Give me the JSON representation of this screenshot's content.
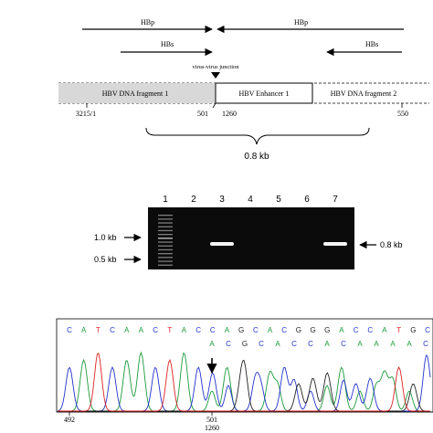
{
  "map": {
    "primer_hbp_left": "HBp",
    "primer_hbp_right": "HBp",
    "primer_hbs_left": "HBs",
    "primer_hbs_right": "HBs",
    "junction_label": "virus-virus junction",
    "fragment1_label": "HBV DNA fragment 1",
    "enhancer_label": "HBV Enhancer 1",
    "fragment2_label": "HBV DNA fragment 2",
    "pos_start": "3215/1",
    "pos_501": "501",
    "pos_1260": "1260",
    "pos_550": "550",
    "size_label": "0.8 kb"
  },
  "gel": {
    "lanes": [
      "1",
      "2",
      "3",
      "4",
      "5",
      "6",
      "7"
    ],
    "marker_high": "1.0 kb",
    "marker_low": "0.5 kb",
    "band_label": "0.8 kb",
    "band_lanes": [
      "3",
      "7"
    ]
  },
  "seq": {
    "row1": [
      "C",
      "A",
      "T",
      "C",
      "A",
      "A",
      "C",
      "T",
      "A",
      "C",
      "C",
      "A",
      "G",
      "C",
      "A",
      "C",
      "G",
      "G",
      "G",
      "A",
      "C",
      "C",
      "A",
      "T",
      "G",
      "C"
    ],
    "row2": [
      "A",
      "C",
      "G",
      "C",
      "A",
      "C",
      "C",
      "A",
      "C",
      "A",
      "A",
      "A",
      "A",
      "C"
    ],
    "pos_492": "492",
    "pos_501": "501",
    "pos_1260": "1260"
  },
  "colors": {
    "A": "#1a9a3a",
    "C": "#2233cc",
    "G": "#222222",
    "T": "#dd2222",
    "fragment_fill": "#d8d8d8",
    "gel_bg": "#0b0b0b",
    "band": "#f4f4f4"
  }
}
